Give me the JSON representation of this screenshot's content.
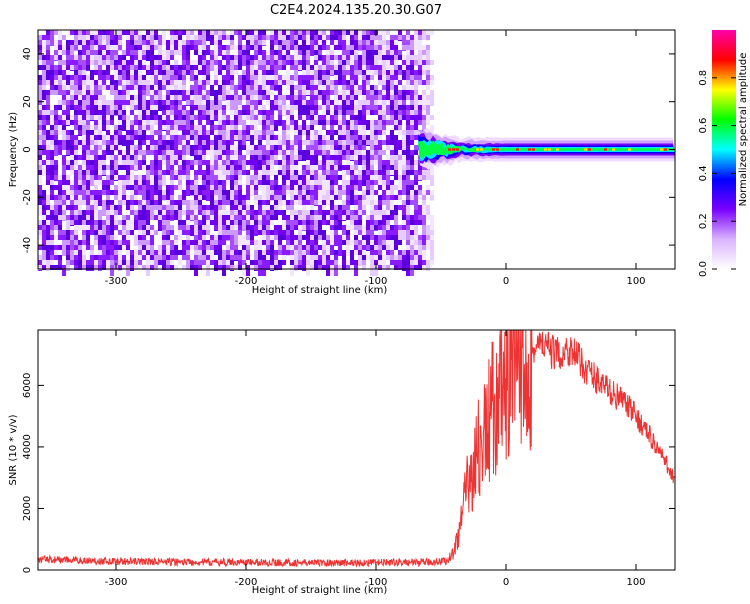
{
  "figure": {
    "title": "C2E4.2024.135.20.30.G07"
  },
  "chart_data": [
    {
      "type": "heatmap",
      "xlabel": "Height of straight line (km)",
      "ylabel": "Frequency (Hz)",
      "xlim": [
        -360,
        130
      ],
      "ylim": [
        -50,
        50
      ],
      "x_ticks": [
        -300,
        -200,
        -100,
        0,
        100
      ],
      "y_ticks": [
        -40,
        -20,
        0,
        20,
        40
      ],
      "grid": false,
      "noise_region_x": [
        -360,
        -60
      ],
      "signal_band_center_hz": 0,
      "colorbar": {
        "label": "Normalized spectral amplitude",
        "range": [
          0.0,
          1.0
        ],
        "ticks": [
          0.0,
          0.2,
          0.4,
          0.6,
          0.8
        ],
        "colormap": [
          "#ffffff",
          "#d9b3ff",
          "#7a00ff",
          "#0000ff",
          "#00ffff",
          "#00ff00",
          "#ffff00",
          "#ff0000",
          "#ff00aa"
        ]
      }
    },
    {
      "type": "line",
      "xlabel": "Height of straight line (km)",
      "ylabel": "SNR (10 * v/v)",
      "xlim": [
        -360,
        130
      ],
      "ylim": [
        0,
        7800
      ],
      "x_ticks": [
        -300,
        -200,
        -100,
        0,
        100
      ],
      "y_ticks": [
        0,
        2000,
        4000,
        6000
      ],
      "grid": false,
      "series": [
        {
          "color": "#ee3333",
          "points": [
            [
              -360,
              350
            ],
            [
              -300,
              280
            ],
            [
              -250,
              260
            ],
            [
              -200,
              250
            ],
            [
              -150,
              230
            ],
            [
              -100,
              240
            ],
            [
              -60,
              250
            ],
            [
              -45,
              300
            ],
            [
              -40,
              600
            ],
            [
              -35,
              1500
            ],
            [
              -30,
              2600
            ],
            [
              -25,
              3500
            ],
            [
              -20,
              4000
            ],
            [
              -15,
              4500
            ],
            [
              -10,
              5300
            ],
            [
              -5,
              5600
            ],
            [
              0,
              5800
            ],
            [
              5,
              6200
            ],
            [
              10,
              6500
            ],
            [
              15,
              6800
            ],
            [
              20,
              7000
            ],
            [
              25,
              7300
            ],
            [
              30,
              7300
            ],
            [
              35,
              7100
            ],
            [
              40,
              7000
            ],
            [
              45,
              7100
            ],
            [
              50,
              7200
            ],
            [
              55,
              6900
            ],
            [
              60,
              6600
            ],
            [
              70,
              6200
            ],
            [
              80,
              5800
            ],
            [
              90,
              5500
            ],
            [
              100,
              5000
            ],
            [
              110,
              4400
            ],
            [
              120,
              3700
            ],
            [
              130,
              2950
            ]
          ]
        }
      ]
    }
  ]
}
